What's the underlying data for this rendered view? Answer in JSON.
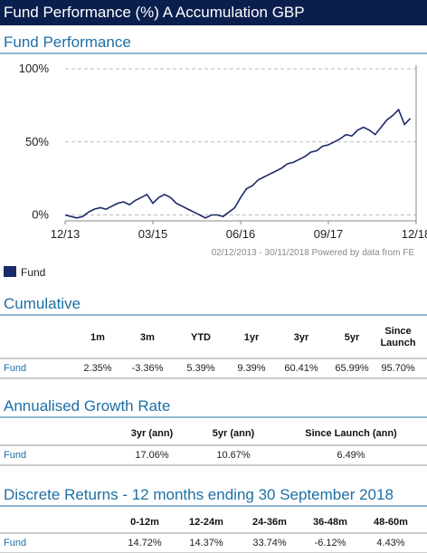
{
  "header": {
    "title": "Fund Performance (%) A Accumulation GBP"
  },
  "chart_data": {
    "type": "line",
    "title": "Fund Performance",
    "categories": [
      "12/13",
      null,
      null,
      null,
      null,
      null,
      null,
      null,
      null,
      null,
      null,
      null,
      null,
      null,
      null,
      "03/15",
      null,
      null,
      null,
      null,
      null,
      null,
      null,
      null,
      null,
      null,
      null,
      null,
      null,
      null,
      "06/16",
      null,
      null,
      null,
      null,
      null,
      null,
      null,
      null,
      null,
      null,
      null,
      null,
      null,
      null,
      "09/17",
      null,
      null,
      null,
      null,
      null,
      null,
      null,
      null,
      null,
      null,
      null,
      null,
      null,
      null,
      "12/18"
    ],
    "series": [
      {
        "name": "Fund",
        "color": "#1b2a6b",
        "values": [
          0,
          -1,
          -2,
          -1,
          2,
          4,
          5,
          4,
          6,
          8,
          9,
          7,
          10,
          12,
          14,
          8,
          12,
          14,
          12,
          8,
          6,
          4,
          2,
          0,
          -2,
          0,
          0,
          -1,
          2,
          5,
          12,
          18,
          20,
          24,
          26,
          28,
          30,
          32,
          35,
          36,
          38,
          40,
          43,
          44,
          47,
          48,
          50,
          52,
          55,
          54,
          58,
          60,
          58,
          55,
          60,
          65,
          68,
          72,
          62,
          66,
          null
        ]
      }
    ],
    "ylim": [
      -4,
      100
    ],
    "yticks": [
      {
        "value": 0,
        "label": "0%"
      },
      {
        "value": 50,
        "label": "50%"
      },
      {
        "value": 100,
        "label": "100%"
      }
    ],
    "grid": true,
    "source": "02/12/2013 - 30/11/2018 Powered by data from FE"
  },
  "cumulative": {
    "title": "Cumulative",
    "columns": [
      "1m",
      "3m",
      "YTD",
      "1yr",
      "3yr",
      "5yr",
      "Since Launch"
    ],
    "rows": [
      [
        "Fund",
        "2.35%",
        "-3.36%",
        "5.39%",
        "9.39%",
        "60.41%",
        "65.99%",
        "95.70%"
      ]
    ]
  },
  "annualised": {
    "title": "Annualised Growth Rate",
    "columns": [
      "3yr (ann)",
      "5yr (ann)",
      "Since Launch (ann)"
    ],
    "rows": [
      [
        "Fund",
        "17.06%",
        "10.67%",
        "6.49%"
      ]
    ]
  },
  "discrete": {
    "title": "Discrete Returns - 12 months ending 30 September 2018",
    "columns": [
      "0-12m",
      "12-24m",
      "24-36m",
      "36-48m",
      "48-60m"
    ],
    "rows": [
      [
        "Fund",
        "14.72%",
        "14.37%",
        "33.74%",
        "-6.12%",
        "4.43%"
      ]
    ]
  }
}
